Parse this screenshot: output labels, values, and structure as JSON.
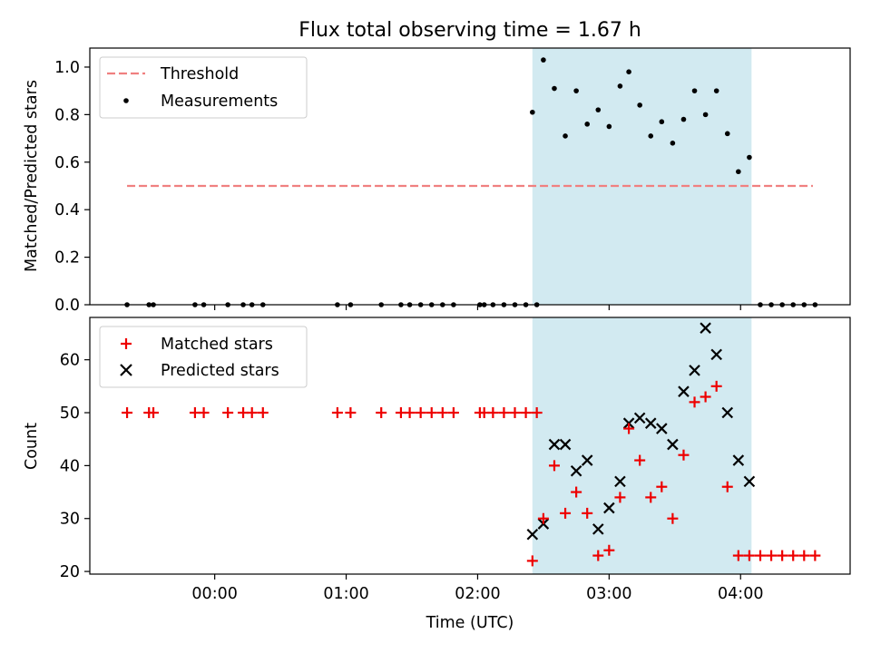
{
  "title": "Flux total observing time = 1.67 h",
  "xlabel": "Time (UTC)",
  "x_tick_labels": [
    "00:00",
    "01:00",
    "02:00",
    "03:00",
    "04:00"
  ],
  "colors": {
    "threshold": "#f08080",
    "measurements": "#000000",
    "matched": "#ee0000",
    "predicted": "#000000",
    "shade": "#add8e6"
  },
  "chart_data": [
    {
      "type": "scatter",
      "ylabel": "Matched/Predicted stars",
      "ylim": [
        0,
        1.08
      ],
      "y_ticks": [
        "0.0",
        "0.2",
        "0.4",
        "0.6",
        "0.8",
        "1.0"
      ],
      "xlim": [
        "-00:57",
        "04:50"
      ],
      "legend_position": "top-left",
      "shaded_interval": [
        "02:25",
        "04:05"
      ],
      "threshold": {
        "name": "Threshold",
        "value": 0.5,
        "x_range": [
          "-00:40",
          "04:33"
        ],
        "style": "dashed"
      },
      "series": [
        {
          "name": "Measurements",
          "points": [
            [
              "-00:40",
              0
            ],
            [
              "-00:30",
              0
            ],
            [
              "-00:28",
              0
            ],
            [
              "-00:09",
              0
            ],
            [
              "-00:05",
              0
            ],
            [
              "00:06",
              0
            ],
            [
              "00:13",
              0
            ],
            [
              "00:17",
              0
            ],
            [
              "00:22",
              0
            ],
            [
              "00:56",
              0
            ],
            [
              "01:02",
              0
            ],
            [
              "01:16",
              0
            ],
            [
              "01:25",
              0
            ],
            [
              "01:29",
              0
            ],
            [
              "01:34",
              0
            ],
            [
              "01:39",
              0
            ],
            [
              "01:44",
              0
            ],
            [
              "01:49",
              0
            ],
            [
              "02:01",
              0
            ],
            [
              "02:03",
              0
            ],
            [
              "02:07",
              0
            ],
            [
              "02:12",
              0
            ],
            [
              "02:17",
              0
            ],
            [
              "02:22",
              0
            ],
            [
              "02:27",
              0
            ],
            [
              "02:25",
              0.81
            ],
            [
              "02:30",
              1.03
            ],
            [
              "02:35",
              0.91
            ],
            [
              "02:40",
              0.71
            ],
            [
              "02:45",
              0.9
            ],
            [
              "02:50",
              0.76
            ],
            [
              "02:55",
              0.82
            ],
            [
              "03:00",
              0.75
            ],
            [
              "03:05",
              0.92
            ],
            [
              "03:09",
              0.98
            ],
            [
              "03:14",
              0.84
            ],
            [
              "03:19",
              0.71
            ],
            [
              "03:24",
              0.77
            ],
            [
              "03:29",
              0.68
            ],
            [
              "03:34",
              0.78
            ],
            [
              "03:39",
              0.9
            ],
            [
              "03:44",
              0.8
            ],
            [
              "03:49",
              0.9
            ],
            [
              "03:54",
              0.72
            ],
            [
              "03:59",
              0.56
            ],
            [
              "04:04",
              0.62
            ],
            [
              "04:09",
              0
            ],
            [
              "04:14",
              0
            ],
            [
              "04:19",
              0
            ],
            [
              "04:24",
              0
            ],
            [
              "04:29",
              0
            ],
            [
              "04:34",
              0
            ]
          ]
        }
      ]
    },
    {
      "type": "scatter",
      "ylabel": "Count",
      "ylim": [
        19.5,
        68
      ],
      "y_ticks": [
        "20",
        "30",
        "40",
        "50",
        "60"
      ],
      "xlim": [
        "-00:57",
        "04:50"
      ],
      "legend_position": "top-left",
      "shaded_interval": [
        "02:25",
        "04:05"
      ],
      "series": [
        {
          "name": "Matched stars",
          "points": [
            [
              "-00:40",
              50
            ],
            [
              "-00:30",
              50
            ],
            [
              "-00:28",
              50
            ],
            [
              "-00:09",
              50
            ],
            [
              "-00:05",
              50
            ],
            [
              "00:06",
              50
            ],
            [
              "00:13",
              50
            ],
            [
              "00:17",
              50
            ],
            [
              "00:22",
              50
            ],
            [
              "00:56",
              50
            ],
            [
              "01:02",
              50
            ],
            [
              "01:16",
              50
            ],
            [
              "01:25",
              50
            ],
            [
              "01:29",
              50
            ],
            [
              "01:34",
              50
            ],
            [
              "01:39",
              50
            ],
            [
              "01:44",
              50
            ],
            [
              "01:49",
              50
            ],
            [
              "02:01",
              50
            ],
            [
              "02:03",
              50
            ],
            [
              "02:07",
              50
            ],
            [
              "02:12",
              50
            ],
            [
              "02:17",
              50
            ],
            [
              "02:22",
              50
            ],
            [
              "02:27",
              50
            ],
            [
              "02:25",
              22
            ],
            [
              "02:30",
              30
            ],
            [
              "02:35",
              40
            ],
            [
              "02:40",
              31
            ],
            [
              "02:45",
              35
            ],
            [
              "02:50",
              31
            ],
            [
              "02:55",
              23
            ],
            [
              "03:00",
              24
            ],
            [
              "03:05",
              34
            ],
            [
              "03:09",
              47
            ],
            [
              "03:14",
              41
            ],
            [
              "03:19",
              34
            ],
            [
              "03:24",
              36
            ],
            [
              "03:29",
              30
            ],
            [
              "03:34",
              42
            ],
            [
              "03:39",
              52
            ],
            [
              "03:44",
              53
            ],
            [
              "03:49",
              55
            ],
            [
              "03:54",
              36
            ],
            [
              "03:59",
              23
            ],
            [
              "04:04",
              23
            ],
            [
              "04:09",
              23
            ],
            [
              "04:14",
              23
            ],
            [
              "04:19",
              23
            ],
            [
              "04:24",
              23
            ],
            [
              "04:29",
              23
            ],
            [
              "04:34",
              23
            ]
          ]
        },
        {
          "name": "Predicted stars",
          "points": [
            [
              "02:25",
              27
            ],
            [
              "02:30",
              29
            ],
            [
              "02:35",
              44
            ],
            [
              "02:40",
              44
            ],
            [
              "02:45",
              39
            ],
            [
              "02:50",
              41
            ],
            [
              "02:55",
              28
            ],
            [
              "03:00",
              32
            ],
            [
              "03:05",
              37
            ],
            [
              "03:09",
              48
            ],
            [
              "03:14",
              49
            ],
            [
              "03:19",
              48
            ],
            [
              "03:24",
              47
            ],
            [
              "03:29",
              44
            ],
            [
              "03:34",
              54
            ],
            [
              "03:39",
              58
            ],
            [
              "03:44",
              66
            ],
            [
              "03:49",
              61
            ],
            [
              "03:54",
              50
            ],
            [
              "03:59",
              41
            ],
            [
              "04:04",
              37
            ]
          ]
        }
      ]
    }
  ]
}
